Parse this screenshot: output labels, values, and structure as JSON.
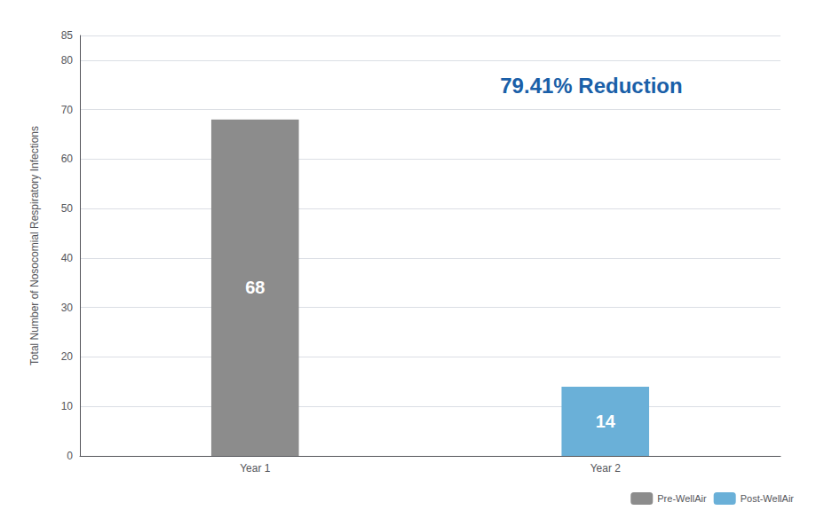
{
  "chart_data": {
    "type": "bar",
    "categories": [
      "Year 1",
      "Year 2"
    ],
    "series": [
      {
        "name": "Pre-WellAir",
        "color": "#8c8c8c",
        "values": [
          68,
          null
        ]
      },
      {
        "name": "Post-WellAir",
        "color": "#6ab0d8",
        "values": [
          null,
          14
        ]
      }
    ],
    "ylabel": "Total Number of Nosocomial Respiratory Infections",
    "ylim": [
      0,
      85
    ],
    "yticks": [
      0,
      10,
      20,
      30,
      40,
      50,
      60,
      70,
      80
    ],
    "grid": true,
    "data_labels": true,
    "legend": "lower right",
    "annotations": [
      {
        "text": "79.41% Reduction",
        "color": "#1a5fa8"
      }
    ]
  }
}
